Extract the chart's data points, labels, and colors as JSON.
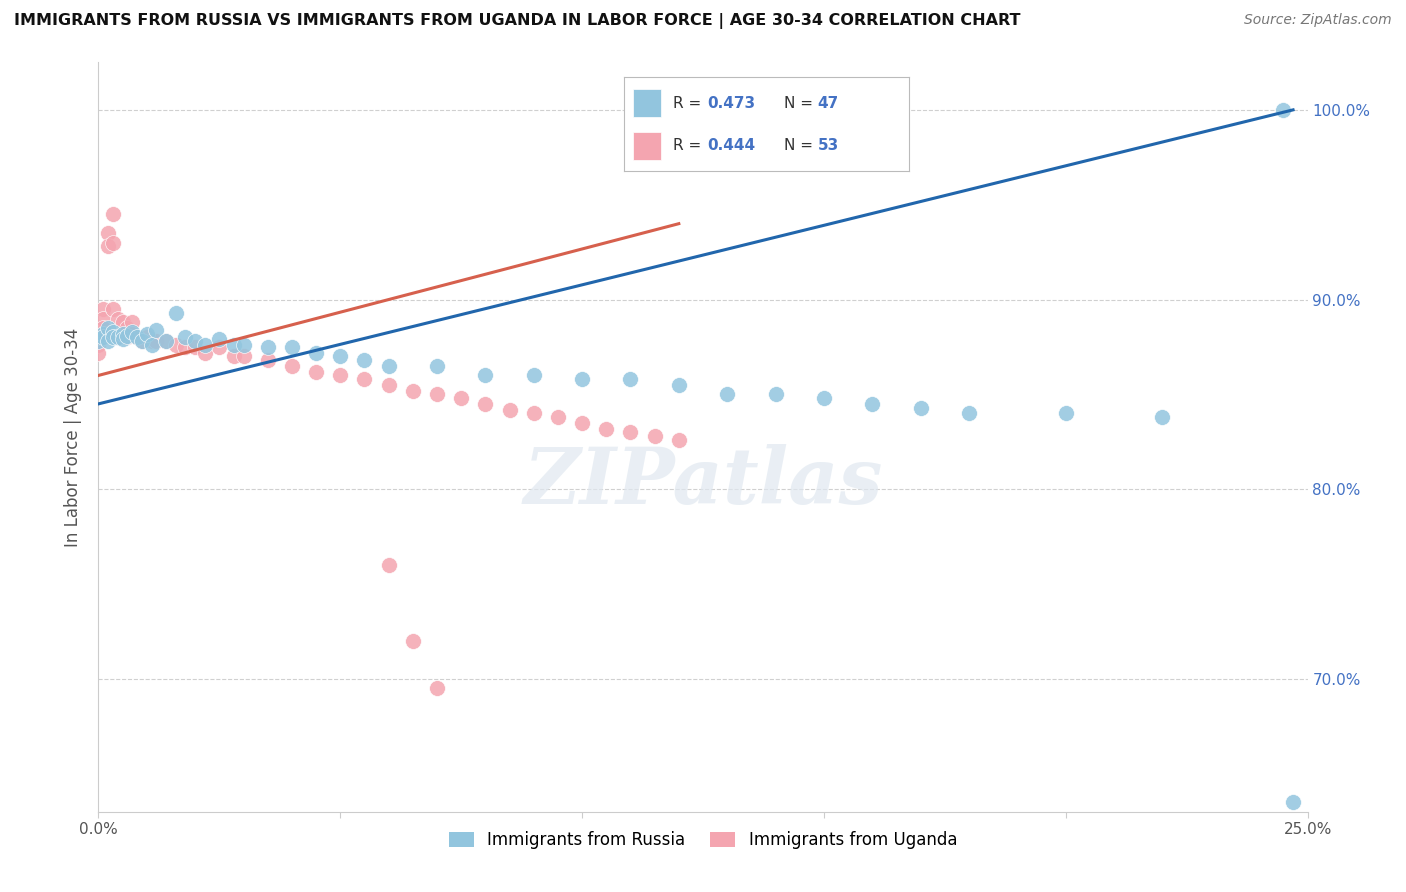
{
  "title": "IMMIGRANTS FROM RUSSIA VS IMMIGRANTS FROM UGANDA IN LABOR FORCE | AGE 30-34 CORRELATION CHART",
  "source": "Source: ZipAtlas.com",
  "ylabel": "In Labor Force | Age 30-34",
  "xlim": [
    0.0,
    0.25
  ],
  "ylim": [
    0.63,
    1.025
  ],
  "russia_R": 0.473,
  "russia_N": 47,
  "uganda_R": 0.444,
  "uganda_N": 53,
  "russia_color": "#92c5de",
  "uganda_color": "#f4a5b0",
  "russia_line_color": "#2166ac",
  "uganda_line_color": "#d6604d",
  "russia_x": [
    0.0,
    0.001,
    0.001,
    0.002,
    0.002,
    0.003,
    0.003,
    0.004,
    0.005,
    0.005,
    0.006,
    0.007,
    0.008,
    0.009,
    0.01,
    0.011,
    0.012,
    0.014,
    0.016,
    0.018,
    0.02,
    0.022,
    0.025,
    0.028,
    0.03,
    0.035,
    0.04,
    0.045,
    0.05,
    0.055,
    0.06,
    0.07,
    0.08,
    0.09,
    0.1,
    0.11,
    0.12,
    0.13,
    0.14,
    0.15,
    0.16,
    0.17,
    0.18,
    0.2,
    0.22,
    0.245,
    0.247
  ],
  "russia_y": [
    0.878,
    0.882,
    0.88,
    0.885,
    0.878,
    0.883,
    0.88,
    0.88,
    0.882,
    0.879,
    0.881,
    0.883,
    0.88,
    0.878,
    0.882,
    0.876,
    0.884,
    0.878,
    0.893,
    0.88,
    0.878,
    0.876,
    0.879,
    0.876,
    0.876,
    0.875,
    0.875,
    0.872,
    0.87,
    0.868,
    0.865,
    0.865,
    0.86,
    0.86,
    0.858,
    0.858,
    0.855,
    0.85,
    0.85,
    0.848,
    0.845,
    0.843,
    0.84,
    0.84,
    0.838,
    1.0,
    0.635
  ],
  "uganda_x": [
    0.0,
    0.0,
    0.0,
    0.001,
    0.001,
    0.001,
    0.002,
    0.002,
    0.003,
    0.003,
    0.003,
    0.004,
    0.004,
    0.005,
    0.005,
    0.006,
    0.006,
    0.007,
    0.007,
    0.008,
    0.009,
    0.01,
    0.011,
    0.012,
    0.014,
    0.016,
    0.018,
    0.02,
    0.022,
    0.025,
    0.028,
    0.03,
    0.035,
    0.04,
    0.045,
    0.05,
    0.055,
    0.06,
    0.065,
    0.07,
    0.075,
    0.08,
    0.085,
    0.09,
    0.095,
    0.1,
    0.105,
    0.11,
    0.115,
    0.12,
    0.06,
    0.065,
    0.07
  ],
  "uganda_y": [
    0.878,
    0.876,
    0.872,
    0.895,
    0.89,
    0.885,
    0.935,
    0.928,
    0.945,
    0.93,
    0.895,
    0.89,
    0.88,
    0.888,
    0.882,
    0.885,
    0.88,
    0.888,
    0.882,
    0.88,
    0.878,
    0.88,
    0.878,
    0.878,
    0.878,
    0.876,
    0.875,
    0.875,
    0.872,
    0.875,
    0.87,
    0.87,
    0.868,
    0.865,
    0.862,
    0.86,
    0.858,
    0.855,
    0.852,
    0.85,
    0.848,
    0.845,
    0.842,
    0.84,
    0.838,
    0.835,
    0.832,
    0.83,
    0.828,
    0.826,
    0.76,
    0.72,
    0.695
  ],
  "russia_line_x": [
    0.0,
    0.247
  ],
  "russia_line_y": [
    0.845,
    1.0
  ],
  "uganda_line_x": [
    0.0,
    0.12
  ],
  "uganda_line_y": [
    0.86,
    0.94
  ],
  "watermark_text": "ZIPatlas",
  "background_color": "#ffffff",
  "grid_color": "#d0d0d0"
}
